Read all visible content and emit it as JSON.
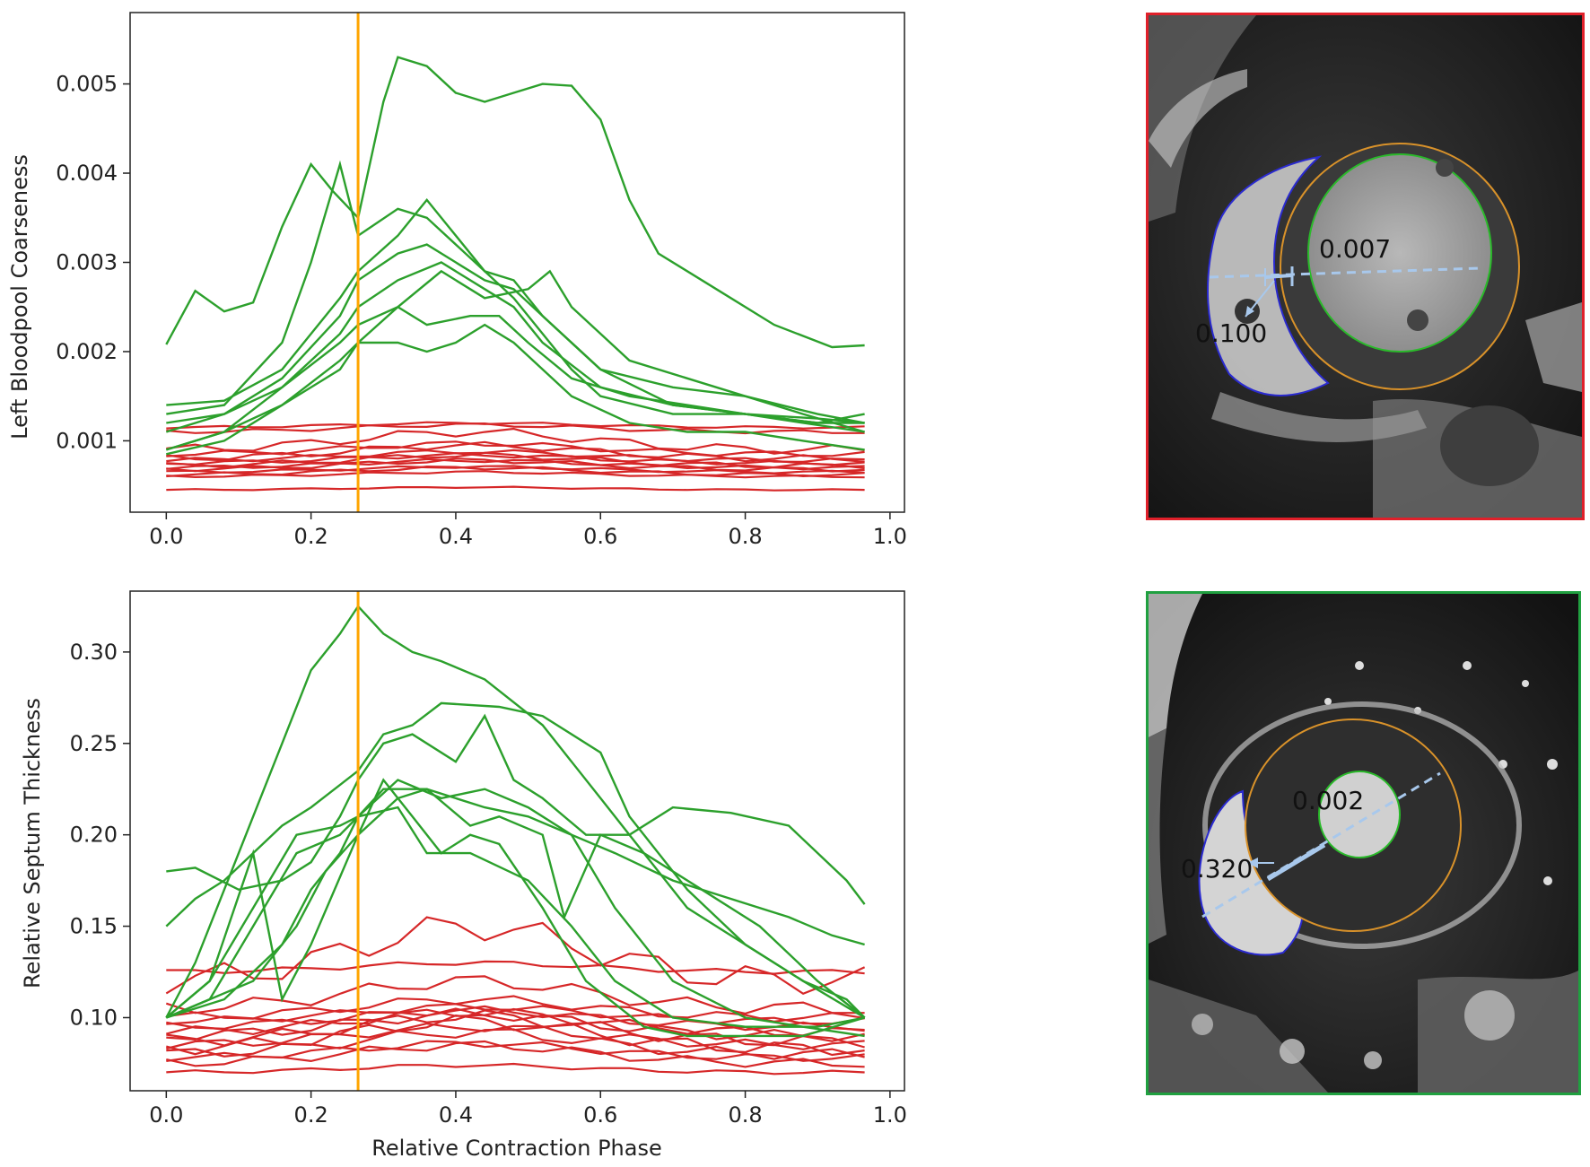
{
  "chart_data": [
    {
      "type": "line",
      "title": "",
      "xlabel": "",
      "ylabel": "Left Bloodpool Coarseness",
      "xlim": [
        -0.05,
        1.02
      ],
      "ylim": [
        0.0002,
        0.0058
      ],
      "xticks": [
        0.0,
        0.2,
        0.4,
        0.6,
        0.8,
        1.0
      ],
      "xtick_labels": [
        "0.0",
        "0.2",
        "0.4",
        "0.6",
        "0.8",
        "1.0"
      ],
      "yticks": [
        0.001,
        0.002,
        0.003,
        0.004,
        0.005
      ],
      "ytick_labels": [
        "0.001",
        "0.002",
        "0.003",
        "0.004",
        "0.005"
      ],
      "vline": {
        "x": 0.265,
        "color": "#ffa500"
      },
      "series_colors": {
        "green": "#2ca02c",
        "red": "#d62728"
      },
      "green_series": [
        {
          "x": [
            0,
            0.04,
            0.08,
            0.12,
            0.16,
            0.2,
            0.23,
            0.265,
            0.3,
            0.32,
            0.36,
            0.4,
            0.44,
            0.48,
            0.52,
            0.56,
            0.6,
            0.64,
            0.68,
            0.76,
            0.84,
            0.92,
            0.965
          ],
          "y": [
            0.00208,
            0.00268,
            0.00245,
            0.00255,
            0.0034,
            0.0041,
            0.0038,
            0.0035,
            0.0048,
            0.0053,
            0.0052,
            0.0049,
            0.0048,
            0.0049,
            0.005,
            0.00498,
            0.0046,
            0.0037,
            0.0031,
            0.0027,
            0.0023,
            0.00205,
            0.00207
          ]
        },
        {
          "x": [
            0,
            0.08,
            0.16,
            0.2,
            0.24,
            0.265,
            0.32,
            0.36,
            0.44,
            0.48,
            0.56,
            0.6,
            0.7,
            0.8,
            0.9,
            0.965
          ],
          "y": [
            0.0013,
            0.0014,
            0.0021,
            0.003,
            0.0041,
            0.0033,
            0.0036,
            0.0035,
            0.0029,
            0.0026,
            0.0018,
            0.0015,
            0.0013,
            0.0013,
            0.0012,
            0.0013
          ]
        },
        {
          "x": [
            0,
            0.08,
            0.16,
            0.24,
            0.265,
            0.32,
            0.36,
            0.44,
            0.48,
            0.52,
            0.6,
            0.7,
            0.8,
            0.9,
            0.965
          ],
          "y": [
            0.0014,
            0.00145,
            0.0018,
            0.0026,
            0.0029,
            0.0033,
            0.0037,
            0.0029,
            0.0028,
            0.0024,
            0.0018,
            0.0016,
            0.0015,
            0.0013,
            0.0012
          ]
        },
        {
          "x": [
            0,
            0.08,
            0.16,
            0.24,
            0.265,
            0.32,
            0.36,
            0.44,
            0.48,
            0.52,
            0.6,
            0.7,
            0.8,
            0.9,
            0.965
          ],
          "y": [
            0.0012,
            0.0013,
            0.0017,
            0.0024,
            0.0028,
            0.0031,
            0.0032,
            0.0028,
            0.0027,
            0.0024,
            0.0018,
            0.0014,
            0.0013,
            0.0012,
            0.0012
          ]
        },
        {
          "x": [
            0,
            0.08,
            0.16,
            0.24,
            0.265,
            0.32,
            0.38,
            0.44,
            0.48,
            0.52,
            0.6,
            0.7,
            0.8,
            0.9,
            0.965
          ],
          "y": [
            0.0011,
            0.0013,
            0.0016,
            0.0022,
            0.0025,
            0.0028,
            0.003,
            0.0027,
            0.0025,
            0.0021,
            0.0016,
            0.0014,
            0.0013,
            0.00125,
            0.0012
          ]
        },
        {
          "x": [
            0,
            0.08,
            0.16,
            0.24,
            0.265,
            0.32,
            0.38,
            0.44,
            0.5,
            0.53,
            0.56,
            0.64,
            0.72,
            0.8,
            0.88,
            0.965
          ],
          "y": [
            0.0009,
            0.0011,
            0.0016,
            0.0021,
            0.0023,
            0.0025,
            0.0029,
            0.0026,
            0.0027,
            0.0029,
            0.0025,
            0.0019,
            0.0017,
            0.0015,
            0.0013,
            0.0011
          ]
        },
        {
          "x": [
            0,
            0.08,
            0.16,
            0.24,
            0.265,
            0.32,
            0.36,
            0.42,
            0.46,
            0.5,
            0.56,
            0.64,
            0.72,
            0.8,
            0.88,
            0.965
          ],
          "y": [
            0.00085,
            0.001,
            0.0014,
            0.0019,
            0.0021,
            0.0025,
            0.0023,
            0.0024,
            0.0024,
            0.0021,
            0.0017,
            0.0015,
            0.0014,
            0.0013,
            0.0012,
            0.0011
          ]
        },
        {
          "x": [
            0,
            0.08,
            0.16,
            0.24,
            0.265,
            0.32,
            0.36,
            0.4,
            0.44,
            0.48,
            0.56,
            0.64,
            0.72,
            0.8,
            0.88,
            0.965
          ],
          "y": [
            0.0009,
            0.0011,
            0.0014,
            0.0018,
            0.0021,
            0.0021,
            0.002,
            0.0021,
            0.0023,
            0.0021,
            0.0015,
            0.0012,
            0.0011,
            0.0011,
            0.001,
            0.0009
          ]
        }
      ],
      "red_series_baselines": [
        0.00045,
        0.0006,
        0.00062,
        0.00065,
        0.00068,
        0.0007,
        0.00072,
        0.00075,
        0.00078,
        0.0008,
        0.00085,
        0.0009,
        0.0011,
        0.00115
      ],
      "red_series_bump": [
        3e-05,
        5e-05,
        8e-05,
        6e-05,
        0.0001,
        8e-05,
        0.00012,
        9e-05,
        0.0001,
        0.00015,
        0.00012,
        0.0002,
        8e-05,
        5e-05
      ]
    },
    {
      "type": "line",
      "title": "",
      "xlabel": "Relative Contraction Phase",
      "ylabel": "Relative Septum Thickness",
      "xlim": [
        -0.05,
        1.02
      ],
      "ylim": [
        0.06,
        0.3333
      ],
      "xticks": [
        0.0,
        0.2,
        0.4,
        0.6,
        0.8,
        1.0
      ],
      "xtick_labels": [
        "0.0",
        "0.2",
        "0.4",
        "0.6",
        "0.8",
        "1.0"
      ],
      "yticks": [
        0.1,
        0.15,
        0.2,
        0.25,
        0.3
      ],
      "ytick_labels": [
        "0.10",
        "0.15",
        "0.20",
        "0.25",
        "0.30"
      ],
      "vline": {
        "x": 0.265,
        "color": "#ffa500"
      },
      "series_colors": {
        "green": "#2ca02c",
        "red": "#d62728"
      },
      "green_series": [
        {
          "x": [
            0,
            0.04,
            0.08,
            0.12,
            0.16,
            0.2,
            0.24,
            0.265,
            0.3,
            0.34,
            0.38,
            0.44,
            0.52,
            0.6,
            0.64,
            0.72,
            0.8,
            0.88,
            0.94,
            0.965
          ],
          "y": [
            0.1,
            0.13,
            0.17,
            0.21,
            0.25,
            0.29,
            0.31,
            0.325,
            0.31,
            0.3,
            0.295,
            0.285,
            0.26,
            0.22,
            0.2,
            0.16,
            0.14,
            0.12,
            0.11,
            0.1
          ]
        },
        {
          "x": [
            0,
            0.04,
            0.08,
            0.12,
            0.16,
            0.2,
            0.265,
            0.3,
            0.34,
            0.38,
            0.46,
            0.52,
            0.6,
            0.64,
            0.72,
            0.8,
            0.88,
            0.965
          ],
          "y": [
            0.15,
            0.165,
            0.175,
            0.19,
            0.205,
            0.215,
            0.235,
            0.255,
            0.26,
            0.272,
            0.27,
            0.265,
            0.245,
            0.21,
            0.17,
            0.14,
            0.12,
            0.1
          ]
        },
        {
          "x": [
            0,
            0.04,
            0.1,
            0.16,
            0.2,
            0.24,
            0.265,
            0.3,
            0.34,
            0.4,
            0.44,
            0.48,
            0.52,
            0.58,
            0.64,
            0.7,
            0.78,
            0.86,
            0.94,
            0.965
          ],
          "y": [
            0.18,
            0.182,
            0.17,
            0.175,
            0.185,
            0.21,
            0.23,
            0.25,
            0.255,
            0.24,
            0.265,
            0.23,
            0.22,
            0.2,
            0.2,
            0.215,
            0.212,
            0.205,
            0.175,
            0.162
          ]
        },
        {
          "x": [
            0,
            0.08,
            0.16,
            0.2,
            0.24,
            0.265,
            0.3,
            0.36,
            0.4,
            0.44,
            0.5,
            0.56,
            0.62,
            0.7,
            0.78,
            0.86,
            0.92,
            0.965
          ],
          "y": [
            0.1,
            0.11,
            0.14,
            0.17,
            0.19,
            0.21,
            0.225,
            0.225,
            0.22,
            0.215,
            0.21,
            0.2,
            0.19,
            0.175,
            0.165,
            0.155,
            0.145,
            0.14
          ]
        },
        {
          "x": [
            0,
            0.06,
            0.12,
            0.18,
            0.22,
            0.265,
            0.32,
            0.36,
            0.42,
            0.46,
            0.52,
            0.55,
            0.6,
            0.66,
            0.74,
            0.82,
            0.9,
            0.965
          ],
          "y": [
            0.1,
            0.11,
            0.12,
            0.15,
            0.18,
            0.2,
            0.22,
            0.225,
            0.205,
            0.21,
            0.2,
            0.155,
            0.2,
            0.19,
            0.17,
            0.15,
            0.12,
            0.1
          ]
        },
        {
          "x": [
            0,
            0.06,
            0.12,
            0.16,
            0.2,
            0.265,
            0.3,
            0.34,
            0.38,
            0.42,
            0.46,
            0.52,
            0.58,
            0.66,
            0.72,
            0.8,
            0.88,
            0.965
          ],
          "y": [
            0.1,
            0.12,
            0.19,
            0.11,
            0.14,
            0.2,
            0.23,
            0.21,
            0.19,
            0.2,
            0.195,
            0.16,
            0.12,
            0.095,
            0.09,
            0.09,
            0.09,
            0.1
          ]
        },
        {
          "x": [
            0,
            0.06,
            0.12,
            0.18,
            0.24,
            0.265,
            0.32,
            0.38,
            0.44,
            0.5,
            0.56,
            0.62,
            0.7,
            0.8,
            0.88,
            0.965
          ],
          "y": [
            0.1,
            0.11,
            0.15,
            0.19,
            0.2,
            0.21,
            0.23,
            0.22,
            0.225,
            0.215,
            0.2,
            0.16,
            0.12,
            0.1,
            0.095,
            0.09
          ]
        },
        {
          "x": [
            0,
            0.06,
            0.12,
            0.18,
            0.24,
            0.265,
            0.32,
            0.36,
            0.42,
            0.5,
            0.56,
            0.62,
            0.7,
            0.8,
            0.9,
            0.965
          ],
          "y": [
            0.1,
            0.12,
            0.16,
            0.2,
            0.205,
            0.21,
            0.215,
            0.19,
            0.19,
            0.175,
            0.15,
            0.12,
            0.1,
            0.095,
            0.095,
            0.1
          ]
        }
      ],
      "red_series_baselines": [
        0.07,
        0.075,
        0.078,
        0.08,
        0.083,
        0.085,
        0.087,
        0.09,
        0.092,
        0.095,
        0.098,
        0.1,
        0.105,
        0.12,
        0.125
      ],
      "red_series_bump": [
        0.004,
        0.01,
        0.008,
        0.012,
        0.015,
        0.01,
        0.014,
        0.012,
        0.011,
        0.009,
        0.008,
        0.01,
        0.015,
        0.03,
        0.005
      ]
    }
  ],
  "mri_panels": [
    {
      "annotation_1": "0.007",
      "annotation_2": "0.100",
      "border_color": "#e0202a"
    },
    {
      "annotation_1": "0.002",
      "annotation_2": "0.320",
      "border_color": "#20a040"
    }
  ]
}
